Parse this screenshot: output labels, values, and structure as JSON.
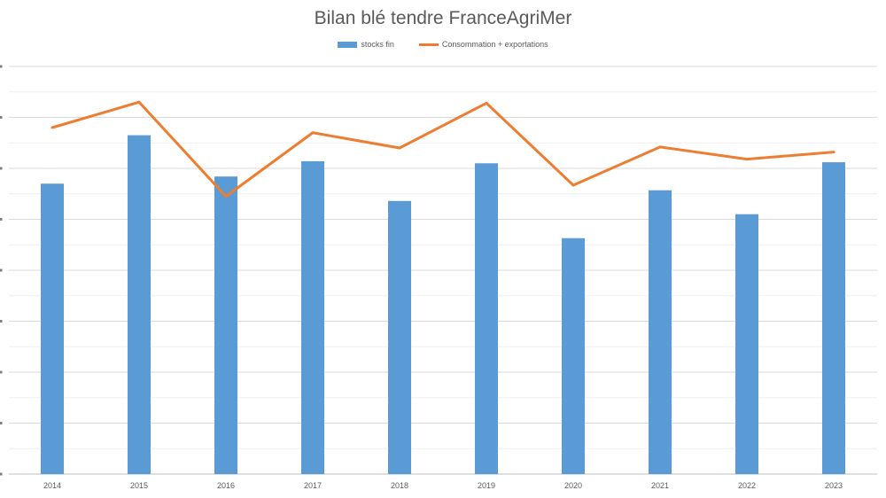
{
  "chart_data": {
    "type": "bar",
    "title": "Bilan blé tendre FranceAgriMer",
    "categories": [
      "2014",
      "2015",
      "2016",
      "2017",
      "2018",
      "2019",
      "2020",
      "2021",
      "2022",
      "2023"
    ],
    "series": [
      {
        "name": "stocks fin",
        "type": "bar",
        "color": "#5b9bd5",
        "values": [
          5.7,
          6.65,
          5.84,
          6.14,
          5.36,
          6.1,
          4.63,
          5.57,
          5.1,
          6.12
        ]
      },
      {
        "name": "Consommation + exportations",
        "type": "line",
        "color": "#ed7d31",
        "values": [
          6.8,
          7.3,
          5.45,
          6.7,
          6.4,
          7.28,
          5.67,
          6.42,
          6.18,
          6.32
        ]
      }
    ],
    "ylim": [
      0,
      8
    ],
    "yticks": [
      0,
      1,
      2,
      3,
      4,
      5,
      6,
      7,
      8
    ],
    "grid": true,
    "legend": "top"
  }
}
